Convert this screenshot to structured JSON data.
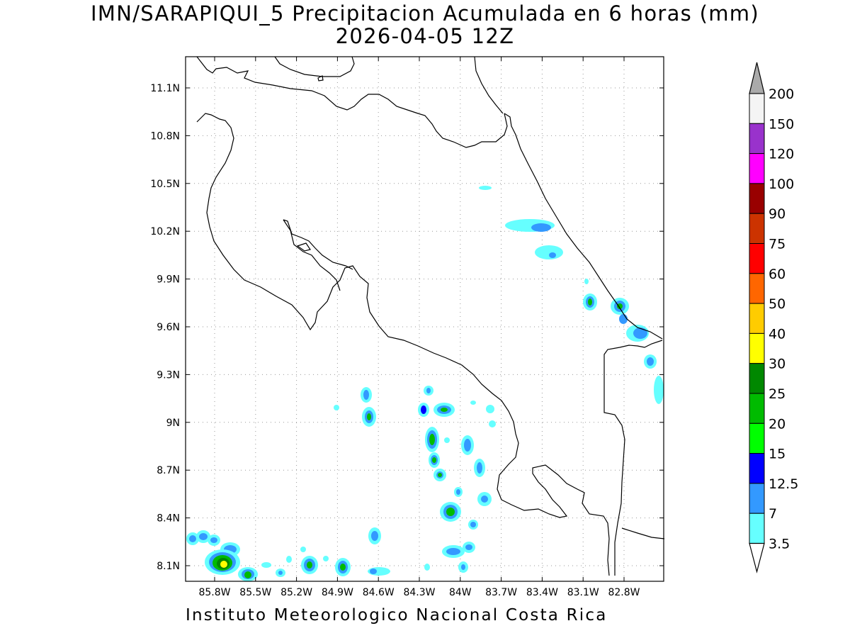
{
  "title": {
    "line1": "IMN/SARAPIQUI_5 Precipitacion Acumulada en 6 horas (mm)",
    "line2": "2026-04-05 12Z"
  },
  "footer": "Instituto Meteorologico Nacional Costa Rica",
  "axes": {
    "x_ticks": [
      "85.8W",
      "85.5W",
      "85.2W",
      "84.9W",
      "84.6W",
      "84.3W",
      "84W",
      "83.7W",
      "83.4W",
      "83.1W",
      "82.8W"
    ],
    "y_ticks": [
      "11.1N",
      "10.8N",
      "10.5N",
      "10.2N",
      "9.9N",
      "9.6N",
      "9.3N",
      "9N",
      "8.7N",
      "8.4N",
      "8.1N"
    ],
    "grid": true
  },
  "colorbar": {
    "labels": [
      "200",
      "150",
      "120",
      "100",
      "90",
      "75",
      "60",
      "50",
      "40",
      "30",
      "25",
      "20",
      "15",
      "12.5",
      "7",
      "3.5"
    ],
    "colors": [
      "#f4f4f4",
      "#9932cc",
      "#ff00ff",
      "#990000",
      "#cc3300",
      "#ff0000",
      "#ff6600",
      "#ffcc00",
      "#ffff00",
      "#008800",
      "#00bb00",
      "#00ff00",
      "#0000ff",
      "#3399ff",
      "#66ffff"
    ],
    "over_color": "#aaaaaa"
  }
}
